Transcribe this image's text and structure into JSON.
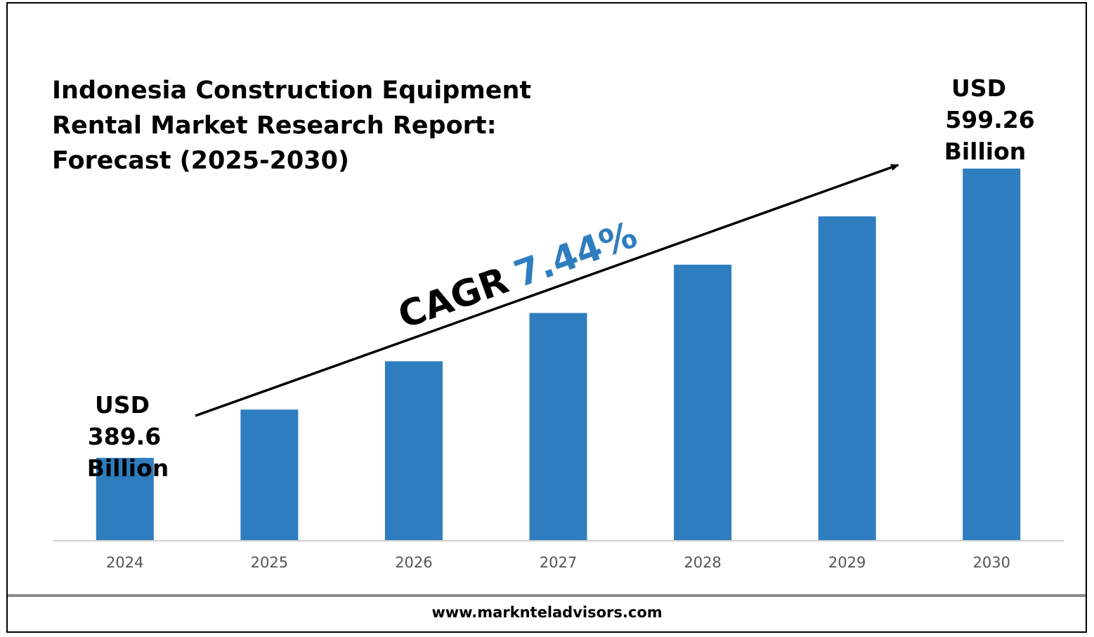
{
  "title_lines": [
    "Indonesia Construction Equipment",
    "Rental Market Research Report:",
    "Forecast (2025-2030)"
  ],
  "cagr": {
    "label": "CAGR",
    "value": "7.44%"
  },
  "start_callout": [
    "USD",
    "389.6",
    "Billion"
  ],
  "end_callout": [
    "USD",
    "599.26",
    "Billion"
  ],
  "footer": "www.marknteladvisors.com",
  "colors": {
    "bar": "#2e7dbf",
    "cagr_value": "#2e7dbf",
    "axis": "#d0d0d0",
    "shadow_bar": "#8a8a8a"
  },
  "chart_data": {
    "type": "bar",
    "categories": [
      "2024",
      "2025",
      "2026",
      "2027",
      "2028",
      "2029",
      "2030"
    ],
    "values": [
      389.6,
      424.6,
      459.6,
      494.6,
      529.6,
      564.6,
      599.26
    ],
    "ylim": [
      330,
      640
    ],
    "grid": false,
    "legend": "none",
    "annotations": [
      "USD 389.6 Billion",
      "USD 599.26 Billion",
      "CAGR 7.44%"
    ]
  }
}
